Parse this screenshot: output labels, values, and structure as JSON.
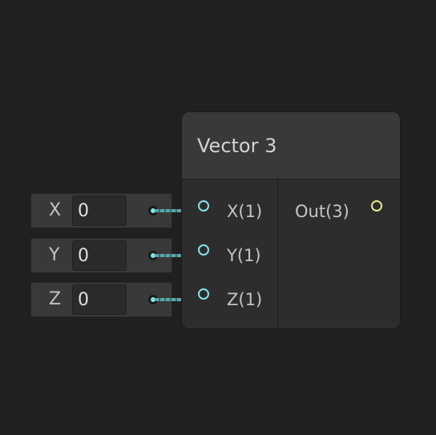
{
  "node": {
    "title": "Vector 3",
    "inputs": [
      {
        "label": "X(1)"
      },
      {
        "label": "Y(1)"
      },
      {
        "label": "Z(1)"
      }
    ],
    "outputs": [
      {
        "label": "Out(3)"
      }
    ]
  },
  "fields": [
    {
      "axis": "X",
      "value": "0"
    },
    {
      "axis": "Y",
      "value": "0"
    },
    {
      "axis": "Z",
      "value": "0"
    }
  ],
  "colors": {
    "background": "#202020",
    "node_body": "#2d2d2d",
    "node_header": "#393939",
    "vector1_port": "#84e4e7",
    "vector3_port": "#e8e98f"
  }
}
